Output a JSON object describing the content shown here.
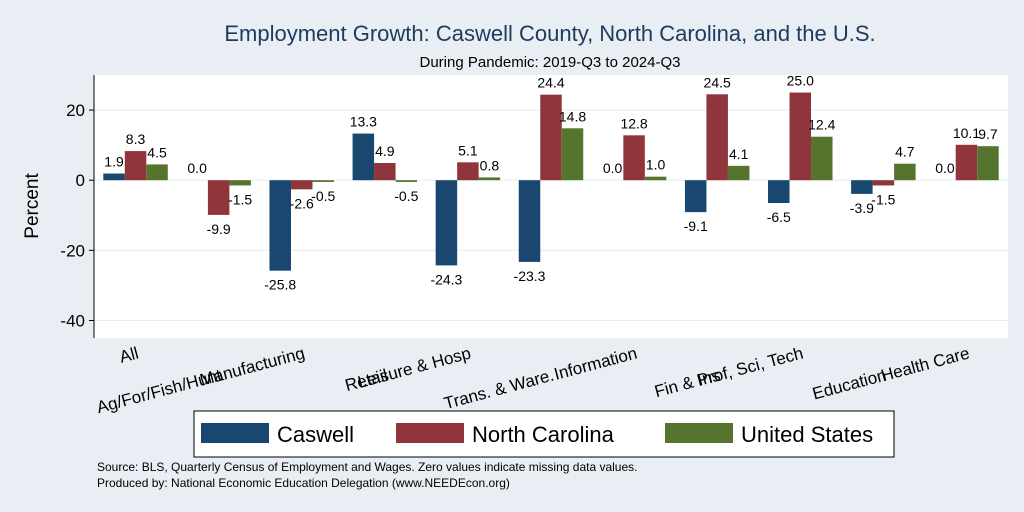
{
  "colors": {
    "background": "#e8eef3",
    "plot_bg": "#ffffff",
    "grid": "#e6edf2",
    "title": "#1e3a5f",
    "series": [
      "#1a476f",
      "#90353b",
      "#55752f"
    ]
  },
  "chart_data": {
    "type": "bar",
    "title": "Employment Growth: Caswell County, North Carolina, and the U.S.",
    "subtitle": "During Pandemic: 2019-Q3 to 2024-Q3",
    "ylabel": "Percent",
    "xlabel": "",
    "ylim": [
      -45,
      30
    ],
    "yticks": [
      -40,
      -20,
      0,
      20
    ],
    "grid": true,
    "legend_position": "bottom",
    "categories": [
      "All",
      "Ag/For/Fish/Hunt",
      "Manufacturing",
      "Retail",
      "Leisure & Hosp",
      "Trans. & Ware.",
      "Information",
      "Fin & Ins",
      "Prof, Sci, Tech",
      "Education",
      "Health Care"
    ],
    "series": [
      {
        "name": "Caswell",
        "values": [
          1.9,
          0.0,
          -25.8,
          13.3,
          -24.3,
          -23.3,
          0.0,
          -9.1,
          -6.5,
          -3.9,
          0.0
        ]
      },
      {
        "name": "North Carolina",
        "values": [
          8.3,
          -9.9,
          -2.6,
          4.9,
          5.1,
          24.4,
          12.8,
          24.5,
          25.0,
          -1.5,
          10.1
        ]
      },
      {
        "name": "United States",
        "values": [
          4.5,
          -1.5,
          -0.5,
          -0.5,
          0.8,
          14.8,
          1.0,
          4.1,
          12.4,
          4.7,
          9.7
        ]
      }
    ]
  },
  "footer": {
    "source": "Source: BLS, Quarterly Census of Employment and Wages. Zero values indicate missing data values.",
    "produced": "Produced by: National Economic Education Delegation (www.NEEDEcon.org)"
  }
}
